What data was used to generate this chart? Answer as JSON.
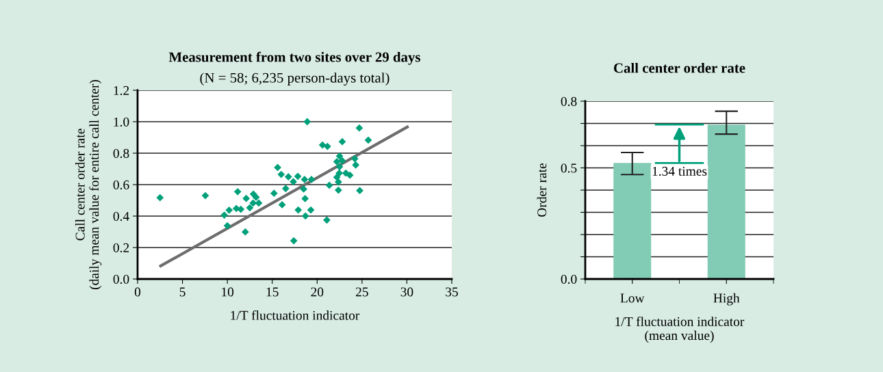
{
  "chart_data": [
    {
      "type": "scatter",
      "title": "Measurement from two sites over 29 days",
      "subtitle": "(N = 58; 6,235 person-days total)",
      "xlabel": "1/T fluctuation indicator",
      "ylabel": "Call center order rate\n(daily mean value for entire call center)",
      "series": [
        {
          "type": "scatter",
          "color": "#00a07a",
          "marker": "diamond",
          "x": [
            2.5,
            7.55,
            9.66,
            10.2,
            10.0,
            11.0,
            11.15,
            11.5,
            12.0,
            12.1,
            12.5,
            12.87,
            12.9,
            13.2,
            13.5,
            15.2,
            15.6,
            16.0,
            16.1,
            16.5,
            16.8,
            17.4,
            17.35,
            17.85,
            17.9,
            18.9,
            18.6,
            19.37,
            18.5,
            18.66,
            19.3,
            18.7,
            20.6,
            21.15,
            21.36,
            21.08,
            22.8,
            24.7,
            25.7,
            22.5,
            22.2,
            22.8,
            22.5,
            24.2,
            24.3,
            22.47,
            23.2,
            23.65,
            22.2,
            22.37,
            22.37,
            24.75
          ],
          "values": [
            0.517,
            0.53,
            0.406,
            0.438,
            0.339,
            0.448,
            0.555,
            0.443,
            0.299,
            0.512,
            0.453,
            0.483,
            0.54,
            0.52,
            0.483,
            0.545,
            0.709,
            0.665,
            0.472,
            0.575,
            0.65,
            0.243,
            0.619,
            0.653,
            0.439,
            1.0,
            0.633,
            0.633,
            0.572,
            0.511,
            0.439,
            0.401,
            0.852,
            0.843,
            0.596,
            0.375,
            0.873,
            0.96,
            0.883,
            0.781,
            0.746,
            0.752,
            0.714,
            0.765,
            0.725,
            0.673,
            0.673,
            0.66,
            0.647,
            0.617,
            0.565,
            0.562
          ]
        },
        {
          "type": "line",
          "color": "#6d6d6d",
          "marker": "none",
          "line_style": "solid",
          "x": [
            2.57,
            30.05
          ],
          "values": [
            0.083,
            0.967
          ]
        }
      ],
      "xlim": [
        0,
        35
      ],
      "xticks": [
        0,
        5,
        10,
        15,
        20,
        25,
        30,
        35
      ],
      "ylim": [
        0,
        1.2
      ],
      "yticks": [
        {
          "value": 0,
          "label": "0.0"
        },
        {
          "value": 0.2,
          "label": "0.2"
        },
        {
          "value": 0.4,
          "label": "0.4"
        },
        {
          "value": 0.6,
          "label": "0.6"
        },
        {
          "value": 0.8,
          "label": "0.8"
        },
        {
          "value": 1.0,
          "label": "1.0"
        },
        {
          "value": 1.2,
          "label": "1.2"
        }
      ],
      "grid": "y",
      "legend": false
    },
    {
      "type": "bar",
      "title": "Call center order rate",
      "xlabel": "1/T fluctuation indicator\n(mean value)",
      "ylabel": "Order rate",
      "categories": [
        "Low",
        "High"
      ],
      "values": [
        0.522,
        0.695
      ],
      "color": "#82cbb4",
      "errors": [
        [
          0.47,
          0.569
        ],
        [
          0.652,
          0.755
        ]
      ],
      "ylim": [
        0,
        0.8
      ],
      "yticks": [
        {
          "value": 0,
          "label": "0.0"
        },
        {
          "value": 0.1,
          "label": null
        },
        {
          "value": 0.2,
          "label": null
        },
        {
          "value": 0.3,
          "label": null
        },
        {
          "value": 0.4,
          "label": null
        },
        {
          "value": 0.5,
          "label": "0.5"
        },
        {
          "value": 0.6,
          "label": null
        },
        {
          "value": 0.7,
          "label": null
        },
        {
          "value": 0.8,
          "label": "0.8"
        }
      ],
      "grid": "y",
      "legend": false,
      "annotations": [
        "1.34 times"
      ]
    }
  ]
}
